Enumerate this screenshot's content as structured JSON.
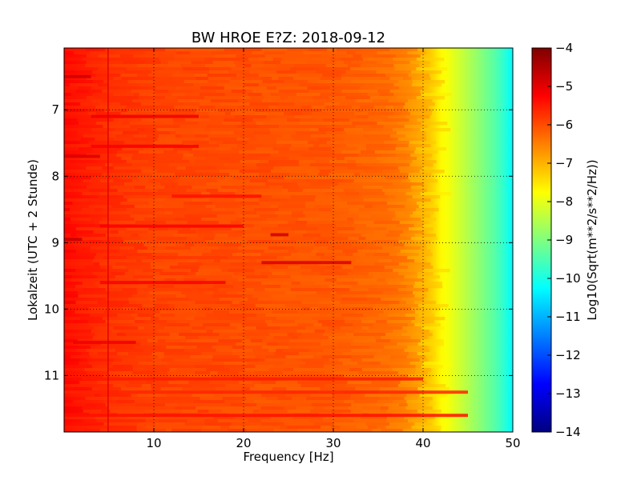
{
  "chart_data": {
    "type": "heatmap",
    "title": "BW HROE E?Z: 2018-09-12",
    "xlabel": "Frequency [Hz]",
    "ylabel": "Lokalzeit (UTC + 2 Stunde)",
    "xlim": [
      0,
      50
    ],
    "ylim": [
      6.07,
      11.85
    ],
    "y_inverted": true,
    "x_ticks": [
      10,
      20,
      30,
      40,
      50
    ],
    "x_tick_labels": [
      "10",
      "20",
      "30",
      "40",
      "50"
    ],
    "y_ticks": [
      7,
      8,
      9,
      10,
      11
    ],
    "y_tick_labels": [
      "7",
      "8",
      "9",
      "10",
      "11"
    ],
    "grid": true,
    "colormap": "jet",
    "colorbar": {
      "label": "Log10(Sqrt(m**2/s**2/Hz))",
      "min": -14,
      "max": -4,
      "ticks": [
        -4,
        -5,
        -6,
        -7,
        -8,
        -9,
        -10,
        -11,
        -12,
        -13,
        -14
      ],
      "tick_labels": [
        "−4",
        "−5",
        "−6",
        "−7",
        "−8",
        "−9",
        "−10",
        "−11",
        "−12",
        "−13",
        "−14"
      ]
    },
    "spectrum_profile": {
      "frequency_hz": [
        0,
        2,
        5,
        10,
        20,
        30,
        36,
        38,
        40,
        41,
        42,
        43,
        44,
        45,
        46,
        47,
        48,
        49,
        50
      ],
      "value": [
        -5.3,
        -5.5,
        -5.7,
        -5.9,
        -6.0,
        -6.1,
        -6.3,
        -6.5,
        -7.0,
        -7.3,
        -7.7,
        -7.9,
        -8.2,
        -8.5,
        -8.8,
        -9.1,
        -9.4,
        -9.8,
        -10.3
      ]
    },
    "bands": [
      {
        "time": 6.5,
        "f_start": 0,
        "f_end": 3,
        "value": -4.8
      },
      {
        "time": 7.1,
        "f_start": 3,
        "f_end": 15,
        "value": -5.1
      },
      {
        "time": 7.55,
        "f_start": 3,
        "f_end": 15,
        "value": -5.2
      },
      {
        "time": 7.7,
        "f_start": 0,
        "f_end": 4,
        "value": -4.9
      },
      {
        "time": 8.3,
        "f_start": 12,
        "f_end": 22,
        "value": -5.4
      },
      {
        "time": 8.75,
        "f_start": 4,
        "f_end": 20,
        "value": -5.2
      },
      {
        "time": 8.88,
        "f_start": 23,
        "f_end": 25,
        "value": -4.8
      },
      {
        "time": 8.95,
        "f_start": 0,
        "f_end": 2,
        "value": -4.7
      },
      {
        "time": 9.3,
        "f_start": 22,
        "f_end": 32,
        "value": -4.9
      },
      {
        "time": 9.6,
        "f_start": 4,
        "f_end": 18,
        "value": -5.2
      },
      {
        "time": 10.5,
        "f_start": 1,
        "f_end": 8,
        "value": -5.1
      },
      {
        "time": 11.05,
        "f_start": 2,
        "f_end": 40,
        "value": -5.5
      },
      {
        "time": 11.25,
        "f_start": 0,
        "f_end": 45,
        "value": -5.6
      },
      {
        "time": 11.6,
        "f_start": 0,
        "f_end": 45,
        "value": -5.4
      }
    ],
    "vertical_line_hz": 4.9
  }
}
